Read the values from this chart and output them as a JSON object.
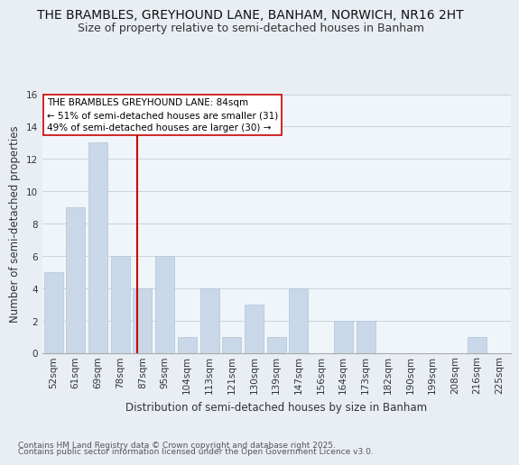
{
  "title1": "THE BRAMBLES, GREYHOUND LANE, BANHAM, NORWICH, NR16 2HT",
  "title2": "Size of property relative to semi-detached houses in Banham",
  "xlabel": "Distribution of semi-detached houses by size in Banham",
  "ylabel": "Number of semi-detached properties",
  "bar_labels": [
    "52sqm",
    "61sqm",
    "69sqm",
    "78sqm",
    "87sqm",
    "95sqm",
    "104sqm",
    "113sqm",
    "121sqm",
    "130sqm",
    "139sqm",
    "147sqm",
    "156sqm",
    "164sqm",
    "173sqm",
    "182sqm",
    "190sqm",
    "199sqm",
    "208sqm",
    "216sqm",
    "225sqm"
  ],
  "bar_values": [
    5,
    9,
    13,
    6,
    4,
    6,
    1,
    4,
    1,
    3,
    1,
    4,
    0,
    2,
    2,
    0,
    0,
    0,
    0,
    1,
    0
  ],
  "bar_color": "#c8d8e8",
  "bar_edgecolor": "#b0c4d8",
  "vline_x": 3.75,
  "vline_color": "#cc0000",
  "ylim": [
    0,
    16
  ],
  "yticks": [
    0,
    2,
    4,
    6,
    8,
    10,
    12,
    14,
    16
  ],
  "annotation_title": "THE BRAMBLES GREYHOUND LANE: 84sqm",
  "annotation_line1": "← 51% of semi-detached houses are smaller (31)",
  "annotation_line2": "49% of semi-detached houses are larger (30) →",
  "footer1": "Contains HM Land Registry data © Crown copyright and database right 2025.",
  "footer2": "Contains public sector information licensed under the Open Government Licence v3.0.",
  "bg_color": "#e8eef4",
  "plot_bg_color": "#f0f5fa",
  "grid_color": "#c8d4de",
  "title_fontsize": 10,
  "subtitle_fontsize": 9,
  "axis_label_fontsize": 8.5,
  "tick_fontsize": 7.5,
  "annotation_fontsize": 7.5,
  "footer_fontsize": 6.5
}
